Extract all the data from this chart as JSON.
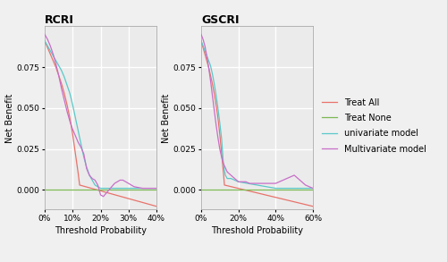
{
  "background_color": "#f0f0f0",
  "plot_bg_color": "#ebebeb",
  "grid_color": "white",
  "title_fontsize": 9,
  "axis_label_fontsize": 7,
  "tick_fontsize": 6.5,
  "legend_fontsize": 7,
  "rcri": {
    "title": "RCRI",
    "xlim": [
      0,
      0.4
    ],
    "ylim": [
      -0.012,
      0.1
    ],
    "xticks": [
      0.0,
      0.1,
      0.2,
      0.3,
      0.4
    ],
    "yticks": [
      0.0,
      0.025,
      0.05,
      0.075
    ],
    "treat_all": {
      "x": [
        0.0,
        0.005,
        0.01,
        0.02,
        0.03,
        0.04,
        0.05,
        0.06,
        0.07,
        0.08,
        0.09,
        0.095,
        0.1,
        0.11,
        0.12,
        0.125,
        0.4
      ],
      "y": [
        0.091,
        0.089,
        0.087,
        0.083,
        0.079,
        0.075,
        0.07,
        0.065,
        0.059,
        0.052,
        0.044,
        0.039,
        0.034,
        0.022,
        0.01,
        0.003,
        -0.01
      ]
    },
    "treat_none": {
      "x": [
        0.0,
        0.4
      ],
      "y": [
        0.0,
        0.0
      ]
    },
    "univariate": {
      "x": [
        0.0,
        0.01,
        0.02,
        0.03,
        0.04,
        0.05,
        0.06,
        0.07,
        0.08,
        0.09,
        0.1,
        0.11,
        0.12,
        0.13,
        0.14,
        0.15,
        0.16,
        0.17,
        0.18,
        0.2,
        0.22,
        0.25,
        0.3,
        0.35,
        0.4
      ],
      "y": [
        0.091,
        0.088,
        0.085,
        0.082,
        0.079,
        0.076,
        0.073,
        0.069,
        0.064,
        0.059,
        0.052,
        0.044,
        0.036,
        0.028,
        0.02,
        0.014,
        0.009,
        0.006,
        0.003,
        0.001,
        0.001,
        0.001,
        0.001,
        0.001,
        0.001
      ]
    },
    "multivariate": {
      "x": [
        0.0,
        0.01,
        0.02,
        0.03,
        0.04,
        0.05,
        0.06,
        0.07,
        0.08,
        0.09,
        0.1,
        0.11,
        0.12,
        0.13,
        0.14,
        0.15,
        0.16,
        0.17,
        0.18,
        0.19,
        0.2,
        0.21,
        0.22,
        0.23,
        0.24,
        0.25,
        0.26,
        0.27,
        0.28,
        0.3,
        0.32,
        0.35,
        0.4
      ],
      "y": [
        0.095,
        0.092,
        0.088,
        0.083,
        0.077,
        0.07,
        0.062,
        0.055,
        0.048,
        0.042,
        0.037,
        0.033,
        0.029,
        0.026,
        0.022,
        0.013,
        0.009,
        0.007,
        0.006,
        0.003,
        -0.003,
        -0.004,
        -0.002,
        0.0,
        0.002,
        0.004,
        0.005,
        0.006,
        0.006,
        0.004,
        0.002,
        0.001,
        0.001
      ]
    }
  },
  "gscri": {
    "title": "GSCRI",
    "xlim": [
      0,
      0.6
    ],
    "ylim": [
      -0.012,
      0.1
    ],
    "xticks": [
      0.0,
      0.2,
      0.4,
      0.6
    ],
    "yticks": [
      0.0,
      0.025,
      0.05,
      0.075
    ],
    "treat_all": {
      "x": [
        0.0,
        0.005,
        0.01,
        0.02,
        0.03,
        0.04,
        0.05,
        0.06,
        0.07,
        0.08,
        0.09,
        0.095,
        0.1,
        0.11,
        0.12,
        0.125,
        0.6
      ],
      "y": [
        0.091,
        0.089,
        0.087,
        0.083,
        0.079,
        0.075,
        0.07,
        0.065,
        0.059,
        0.052,
        0.044,
        0.039,
        0.034,
        0.022,
        0.01,
        0.003,
        -0.01
      ]
    },
    "treat_none": {
      "x": [
        0.0,
        0.6
      ],
      "y": [
        0.0,
        0.0
      ]
    },
    "univariate": {
      "x": [
        0.0,
        0.01,
        0.02,
        0.03,
        0.04,
        0.05,
        0.06,
        0.07,
        0.08,
        0.09,
        0.1,
        0.11,
        0.12,
        0.13,
        0.14,
        0.16,
        0.18,
        0.2,
        0.25,
        0.3,
        0.35,
        0.4,
        0.5,
        0.55,
        0.6
      ],
      "y": [
        0.091,
        0.088,
        0.085,
        0.082,
        0.079,
        0.076,
        0.071,
        0.065,
        0.058,
        0.05,
        0.041,
        0.031,
        0.015,
        0.009,
        0.007,
        0.007,
        0.006,
        0.005,
        0.004,
        0.003,
        0.002,
        0.001,
        0.001,
        0.001,
        0.001
      ]
    },
    "multivariate": {
      "x": [
        0.0,
        0.01,
        0.02,
        0.03,
        0.04,
        0.05,
        0.06,
        0.07,
        0.08,
        0.09,
        0.1,
        0.11,
        0.12,
        0.14,
        0.16,
        0.18,
        0.2,
        0.22,
        0.24,
        0.26,
        0.28,
        0.3,
        0.32,
        0.34,
        0.36,
        0.38,
        0.4,
        0.42,
        0.44,
        0.46,
        0.48,
        0.5,
        0.52,
        0.54,
        0.56,
        0.58,
        0.6
      ],
      "y": [
        0.095,
        0.092,
        0.088,
        0.082,
        0.075,
        0.067,
        0.058,
        0.049,
        0.04,
        0.032,
        0.025,
        0.02,
        0.016,
        0.011,
        0.009,
        0.007,
        0.005,
        0.005,
        0.005,
        0.004,
        0.004,
        0.004,
        0.004,
        0.004,
        0.004,
        0.004,
        0.004,
        0.005,
        0.006,
        0.007,
        0.008,
        0.009,
        0.007,
        0.005,
        0.003,
        0.002,
        0.001
      ]
    }
  },
  "colors": {
    "treat_all": "#e8736b",
    "treat_none": "#7db854",
    "univariate": "#5bc8c8",
    "multivariate": "#c86ec8"
  },
  "legend_labels": [
    "Treat All",
    "Treat None",
    "univariate model",
    "Multivariate model"
  ]
}
